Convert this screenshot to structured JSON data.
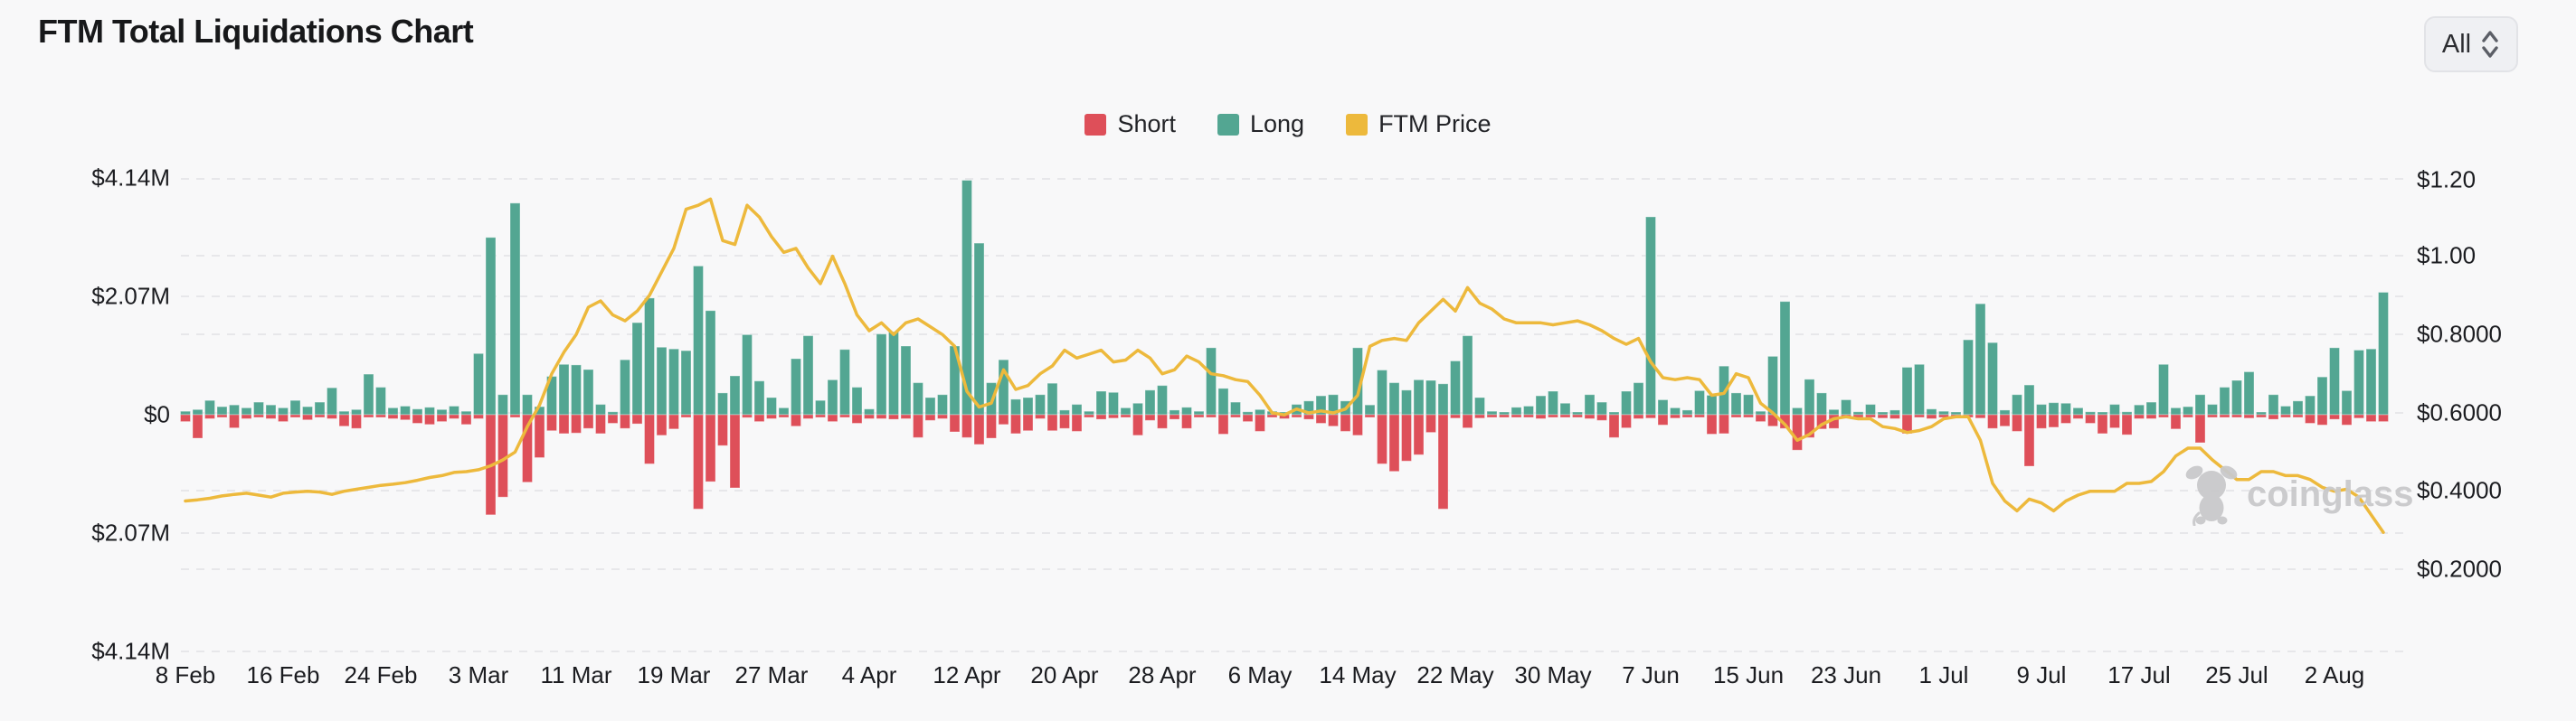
{
  "header": {
    "title": "FTM Total Liquidations Chart",
    "range_selector": {
      "value": "All"
    }
  },
  "legend": [
    {
      "label": "Short",
      "color": "#DE4F59"
    },
    {
      "label": "Long",
      "color": "#53A692"
    },
    {
      "label": "FTM Price",
      "color": "#EDB93C"
    }
  ],
  "watermark": {
    "text": "coinglass"
  },
  "chart_data": {
    "type": "bar+line",
    "title": "FTM Total Liquidations Chart",
    "x_tick_labels": [
      "8 Feb",
      "16 Feb",
      "24 Feb",
      "3 Mar",
      "11 Mar",
      "19 Mar",
      "27 Mar",
      "4 Apr",
      "12 Apr",
      "20 Apr",
      "28 Apr",
      "6 May",
      "14 May",
      "22 May",
      "30 May",
      "7 Jun",
      "15 Jun",
      "23 Jun",
      "1 Jul",
      "9 Jul",
      "17 Jul",
      "25 Jul",
      "2 Aug"
    ],
    "x_tick_interval_days": 8,
    "left_axis_ticks": [
      "$4.14M",
      "$2.07M",
      "$0",
      "$2.07M",
      "$4.14M"
    ],
    "left_axis_max_musd": 4.14,
    "right_axis_ticks": [
      "$1.20",
      "$1.00",
      "$0.8000",
      "$0.6000",
      "$0.4000",
      "$0.2000"
    ],
    "right_axis_range_usd": [
      0.2,
      1.2
    ],
    "grid": "dashed",
    "legend_position": "top-center",
    "series": [
      {
        "name": "Long",
        "type": "bar",
        "direction": "up",
        "axis": "left",
        "color": "#53A692",
        "unit": "USD millions",
        "values": [
          0.06,
          0.09,
          0.25,
          0.14,
          0.17,
          0.12,
          0.22,
          0.17,
          0.12,
          0.25,
          0.14,
          0.22,
          0.47,
          0.06,
          0.09,
          0.71,
          0.48,
          0.12,
          0.15,
          0.1,
          0.13,
          0.09,
          0.15,
          0.06,
          1.07,
          3.1,
          0.35,
          3.7,
          0.35,
          0.14,
          0.67,
          0.88,
          0.87,
          0.79,
          0.18,
          0.05,
          0.96,
          1.61,
          2.04,
          1.18,
          1.15,
          1.12,
          2.6,
          1.82,
          0.38,
          0.68,
          1.4,
          0.59,
          0.3,
          0.12,
          0.98,
          1.38,
          0.25,
          0.61,
          1.14,
          0.48,
          0.1,
          1.41,
          1.45,
          1.2,
          0.56,
          0.3,
          0.35,
          1.2,
          4.1,
          3.0,
          0.56,
          0.96,
          0.27,
          0.3,
          0.35,
          0.55,
          0.08,
          0.18,
          0.06,
          0.41,
          0.39,
          0.12,
          0.2,
          0.43,
          0.51,
          0.08,
          0.13,
          0.06,
          1.17,
          0.46,
          0.22,
          0.05,
          0.09,
          0.06,
          0.03,
          0.18,
          0.24,
          0.33,
          0.35,
          0.24,
          1.17,
          0.17,
          0.78,
          0.56,
          0.43,
          0.61,
          0.6,
          0.54,
          0.94,
          1.38,
          0.3,
          0.06,
          0.03,
          0.13,
          0.15,
          0.33,
          0.41,
          0.2,
          0.03,
          0.35,
          0.22,
          0.03,
          0.41,
          0.56,
          3.46,
          0.26,
          0.12,
          0.08,
          0.42,
          0.34,
          0.85,
          0.38,
          0.35,
          0.06,
          1.02,
          1.98,
          0.12,
          0.62,
          0.38,
          0.09,
          0.26,
          0.05,
          0.18,
          0.04,
          0.08,
          0.83,
          0.88,
          0.1,
          0.06,
          0.04,
          1.31,
          1.94,
          1.26,
          0.08,
          0.35,
          0.52,
          0.18,
          0.21,
          0.2,
          0.12,
          0.05,
          0.03,
          0.18,
          0.05,
          0.17,
          0.22,
          0.88,
          0.12,
          0.14,
          0.35,
          0.18,
          0.48,
          0.6,
          0.75,
          0.03,
          0.35,
          0.15,
          0.24,
          0.33,
          0.66,
          1.17,
          0.42,
          1.13,
          1.15,
          2.14
        ]
      },
      {
        "name": "Short",
        "type": "bar",
        "direction": "down",
        "axis": "left",
        "color": "#DE4F59",
        "unit": "USD millions",
        "values": [
          0.12,
          0.41,
          0.07,
          0.04,
          0.23,
          0.07,
          0.04,
          0.07,
          0.12,
          0.04,
          0.09,
          0.02,
          0.07,
          0.2,
          0.24,
          0.04,
          0.04,
          0.07,
          0.09,
          0.15,
          0.17,
          0.12,
          0.07,
          0.17,
          0.07,
          1.75,
          1.44,
          0.04,
          1.18,
          0.75,
          0.28,
          0.33,
          0.32,
          0.24,
          0.33,
          0.15,
          0.24,
          0.16,
          0.86,
          0.36,
          0.25,
          0.04,
          1.65,
          1.17,
          0.54,
          1.28,
          0.05,
          0.12,
          0.07,
          0.04,
          0.2,
          0.07,
          0.04,
          0.12,
          0.04,
          0.15,
          0.07,
          0.07,
          0.08,
          0.07,
          0.4,
          0.1,
          0.07,
          0.3,
          0.4,
          0.52,
          0.41,
          0.17,
          0.33,
          0.28,
          0.07,
          0.28,
          0.24,
          0.29,
          0.04,
          0.08,
          0.06,
          0.03,
          0.36,
          0.1,
          0.24,
          0.08,
          0.24,
          0.04,
          0.03,
          0.34,
          0.03,
          0.12,
          0.29,
          0.03,
          0.07,
          0.04,
          0.08,
          0.15,
          0.2,
          0.29,
          0.36,
          0.04,
          0.86,
          0.99,
          0.81,
          0.7,
          0.31,
          1.65,
          0.06,
          0.23,
          0.06,
          0.03,
          0.04,
          0.03,
          0.04,
          0.07,
          0.03,
          0.03,
          0.02,
          0.07,
          0.1,
          0.4,
          0.23,
          0.07,
          0.06,
          0.18,
          0.06,
          0.04,
          0.03,
          0.34,
          0.33,
          0.03,
          0.04,
          0.12,
          0.2,
          0.24,
          0.62,
          0.4,
          0.25,
          0.24,
          0.04,
          0.03,
          0.03,
          0.06,
          0.07,
          0.33,
          0.03,
          0.07,
          0.04,
          0.03,
          0.03,
          0.06,
          0.24,
          0.2,
          0.29,
          0.9,
          0.24,
          0.22,
          0.15,
          0.07,
          0.15,
          0.33,
          0.23,
          0.35,
          0.07,
          0.07,
          0.03,
          0.25,
          0.04,
          0.49,
          0.03,
          0.04,
          0.03,
          0.06,
          0.03,
          0.08,
          0.04,
          0.03,
          0.15,
          0.18,
          0.08,
          0.18,
          0.06,
          0.12,
          0.12
        ]
      },
      {
        "name": "FTM Price",
        "type": "line",
        "axis": "right",
        "color": "#EDB93C",
        "unit": "USD",
        "values": [
          0.375,
          0.378,
          0.382,
          0.388,
          0.392,
          0.395,
          0.39,
          0.385,
          0.395,
          0.398,
          0.4,
          0.398,
          0.392,
          0.4,
          0.405,
          0.41,
          0.415,
          0.418,
          0.422,
          0.428,
          0.435,
          0.44,
          0.448,
          0.45,
          0.455,
          0.465,
          0.48,
          0.5,
          0.565,
          0.62,
          0.7,
          0.755,
          0.8,
          0.87,
          0.886,
          0.85,
          0.835,
          0.86,
          0.9,
          0.96,
          1.02,
          1.12,
          1.13,
          1.146,
          1.04,
          1.03,
          1.13,
          1.1,
          1.05,
          1.01,
          1.02,
          0.97,
          0.93,
          1.0,
          0.93,
          0.85,
          0.81,
          0.83,
          0.8,
          0.83,
          0.84,
          0.82,
          0.8,
          0.77,
          0.655,
          0.615,
          0.625,
          0.71,
          0.66,
          0.67,
          0.7,
          0.72,
          0.76,
          0.74,
          0.75,
          0.76,
          0.73,
          0.735,
          0.76,
          0.74,
          0.7,
          0.71,
          0.745,
          0.73,
          0.7,
          0.695,
          0.685,
          0.68,
          0.645,
          0.6,
          0.595,
          0.61,
          0.6,
          0.605,
          0.6,
          0.61,
          0.645,
          0.77,
          0.785,
          0.79,
          0.785,
          0.83,
          0.86,
          0.89,
          0.86,
          0.92,
          0.88,
          0.865,
          0.84,
          0.83,
          0.83,
          0.83,
          0.825,
          0.83,
          0.835,
          0.825,
          0.81,
          0.79,
          0.775,
          0.79,
          0.73,
          0.69,
          0.685,
          0.69,
          0.685,
          0.645,
          0.65,
          0.7,
          0.69,
          0.625,
          0.6,
          0.57,
          0.53,
          0.545,
          0.57,
          0.585,
          0.59,
          0.585,
          0.585,
          0.565,
          0.56,
          0.55,
          0.555,
          0.565,
          0.585,
          0.59,
          0.59,
          0.53,
          0.42,
          0.375,
          0.35,
          0.38,
          0.37,
          0.35,
          0.375,
          0.39,
          0.4,
          0.4,
          0.4,
          0.42,
          0.42,
          0.425,
          0.45,
          0.49,
          0.51,
          0.51,
          0.48,
          0.455,
          0.43,
          0.43,
          0.45,
          0.45,
          0.44,
          0.44,
          0.43,
          0.41,
          0.4,
          0.405,
          0.385,
          0.34,
          0.295
        ]
      }
    ]
  }
}
